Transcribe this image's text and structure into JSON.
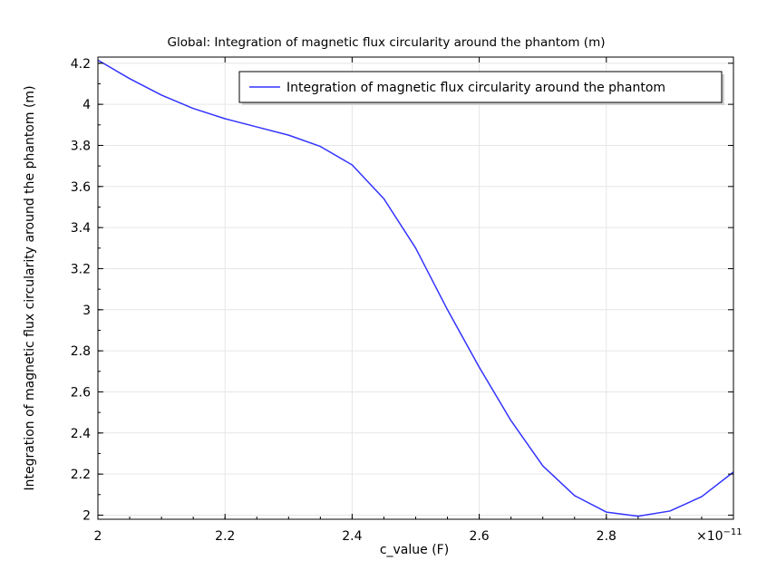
{
  "chart_data": {
    "type": "line",
    "title": "Global: Integration of magnetic flux circularity around the phantom (m)",
    "xlabel": "c_value (F)",
    "ylabel": "Integration of magnetic flux circularity around the phantom (m)",
    "x_multiplier_label": "×10",
    "x_multiplier_exponent": "−11",
    "xlim": [
      2.0,
      3.0
    ],
    "ylim": [
      1.98,
      4.23
    ],
    "x_ticks": [
      2.0,
      2.2,
      2.4,
      2.6,
      2.8
    ],
    "x_tick_labels": [
      "2",
      "2.2",
      "2.4",
      "2.6",
      "2.8"
    ],
    "y_ticks": [
      2.0,
      2.2,
      2.4,
      2.6,
      2.8,
      3.0,
      3.2,
      3.4,
      3.6,
      3.8,
      4.0,
      4.2
    ],
    "y_tick_labels": [
      "2",
      "2.2",
      "2.4",
      "2.6",
      "2.8",
      "3",
      "3.2",
      "3.4",
      "3.6",
      "3.8",
      "4",
      "4.2"
    ],
    "grid": true,
    "legend_position": "top-right",
    "series": [
      {
        "name": "Integration of magnetic flux circularity around the phantom",
        "color": "#3333ff",
        "x": [
          2.0,
          2.05,
          2.1,
          2.15,
          2.2,
          2.25,
          2.3,
          2.35,
          2.4,
          2.45,
          2.5,
          2.55,
          2.6,
          2.65,
          2.7,
          2.75,
          2.8,
          2.85,
          2.9,
          2.95,
          3.0
        ],
        "y": [
          4.215,
          4.125,
          4.045,
          3.98,
          3.93,
          3.89,
          3.85,
          3.795,
          3.705,
          3.54,
          3.3,
          3.0,
          2.72,
          2.46,
          2.24,
          2.095,
          2.015,
          1.995,
          2.02,
          2.09,
          2.21
        ]
      }
    ]
  }
}
